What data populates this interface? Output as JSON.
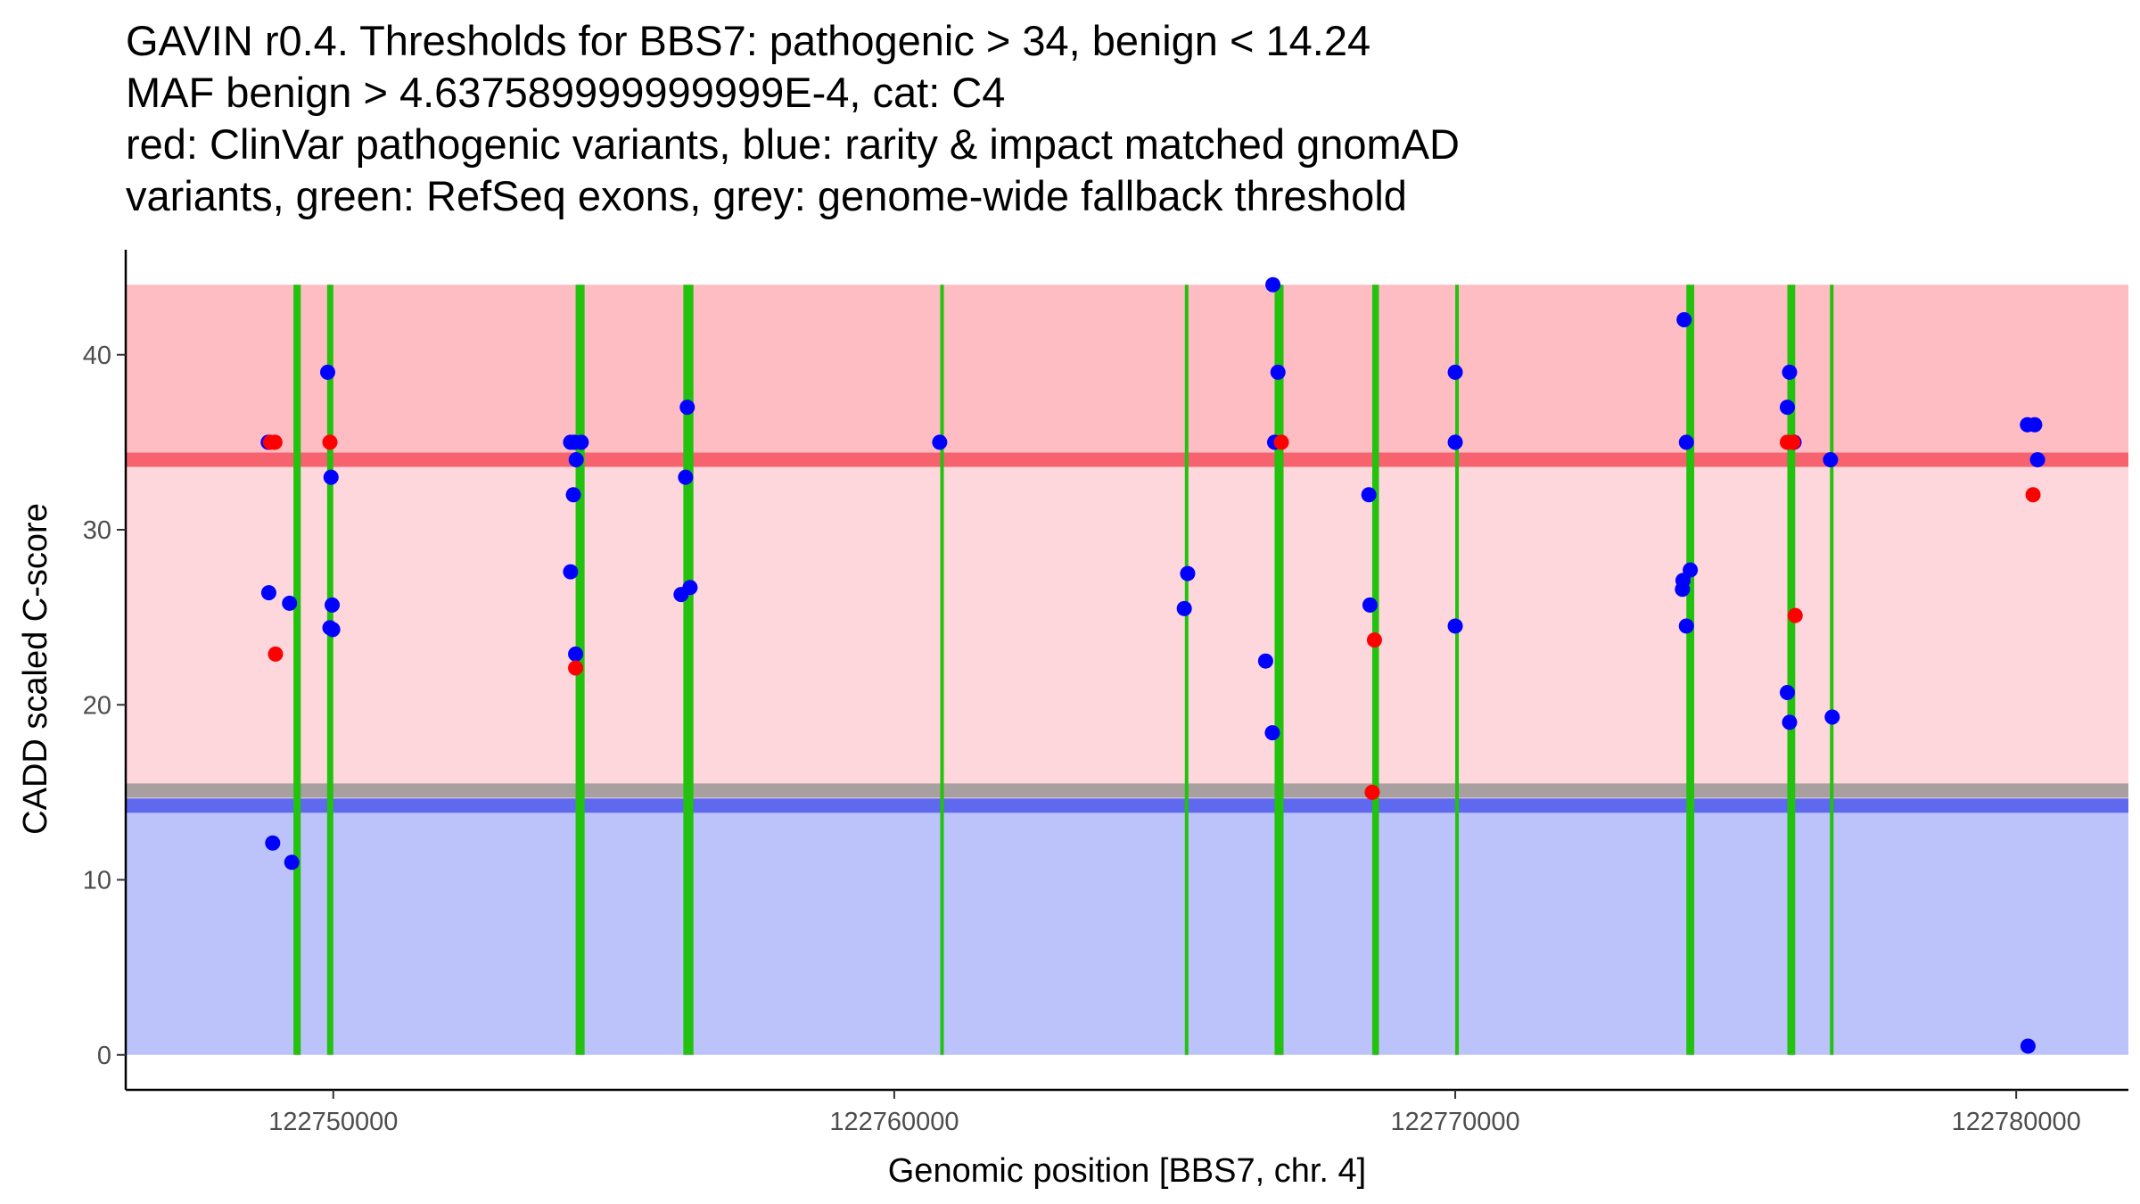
{
  "chart_data": {
    "type": "scatter",
    "title_lines": [
      "GAVIN r0.4. Thresholds for BBS7: pathogenic > 34, benign < 14.24",
      "MAF benign > 4.637589999999999E-4, cat: C4",
      "red: ClinVar pathogenic variants, blue: rarity & impact matched gnomAD",
      "variants, green: RefSeq exons, grey: genome-wide fallback threshold"
    ],
    "xlabel": "Genomic position [BBS7, chr. 4]",
    "ylabel": "CADD scaled C-score",
    "xlim": [
      122746300,
      122782000
    ],
    "ylim": [
      -2.0,
      46.0
    ],
    "x_ticks": [
      {
        "value": 122750000,
        "label": "122750000"
      },
      {
        "value": 122760000,
        "label": "122760000"
      },
      {
        "value": 122770000,
        "label": "122770000"
      },
      {
        "value": 122780000,
        "label": "122780000"
      }
    ],
    "y_ticks": [
      {
        "value": 0,
        "label": "0"
      },
      {
        "value": 10,
        "label": "10"
      },
      {
        "value": 20,
        "label": "20"
      },
      {
        "value": 30,
        "label": "30"
      },
      {
        "value": 40,
        "label": "40"
      }
    ],
    "thresholds": {
      "pathogenic": 34,
      "benign": 14.24,
      "genome_wide_fallback": 15.1,
      "max_score": 44
    },
    "colors": {
      "pathogenic_zone": "#fdd7dc",
      "pathogenic_upper": "#febcc3",
      "pathogenic_line": "#f6626e",
      "benign_zone": "#bcc2fa",
      "benign_line": "#5e69f0",
      "fallback_line": "#a8a0a0",
      "exon": "#22c20e",
      "clinvar": "#ff0000",
      "gnomad": "#0000ff"
    },
    "exons": [
      {
        "start": 122749290,
        "end": 122749420
      },
      {
        "start": 122749890,
        "end": 122750000
      },
      {
        "start": 122754320,
        "end": 122754480
      },
      {
        "start": 122756240,
        "end": 122756420
      },
      {
        "start": 122760820,
        "end": 122760860
      },
      {
        "start": 122765180,
        "end": 122765220
      },
      {
        "start": 122766780,
        "end": 122766940
      },
      {
        "start": 122768520,
        "end": 122768640
      },
      {
        "start": 122770000,
        "end": 122770040
      },
      {
        "start": 122774120,
        "end": 122774260
      },
      {
        "start": 122775920,
        "end": 122776060
      },
      {
        "start": 122776680,
        "end": 122776740
      }
    ],
    "series": [
      {
        "name": "ClinVar pathogenic variants",
        "color": "#ff0000",
        "points": [
          [
            122748880,
            35
          ],
          [
            122748960,
            35
          ],
          [
            122748970,
            22.9
          ],
          [
            122749940,
            35
          ],
          [
            122754320,
            22.1
          ],
          [
            122766900,
            35
          ],
          [
            122768560,
            23.7
          ],
          [
            122768520,
            15.0
          ],
          [
            122775920,
            35
          ],
          [
            122776020,
            35
          ],
          [
            122776060,
            25.1
          ],
          [
            122780300,
            32
          ]
        ]
      },
      {
        "name": "rarity & impact matched gnomAD variants",
        "color": "#0000ff",
        "points": [
          [
            122748840,
            35
          ],
          [
            122748850,
            26.4
          ],
          [
            122748920,
            12.1
          ],
          [
            122749220,
            25.8
          ],
          [
            122749260,
            11.0
          ],
          [
            122749900,
            39
          ],
          [
            122749940,
            24.4
          ],
          [
            122749980,
            25.7
          ],
          [
            122749960,
            33
          ],
          [
            122749990,
            24.3
          ],
          [
            122754230,
            35
          ],
          [
            122754300,
            35
          ],
          [
            122754330,
            34
          ],
          [
            122754280,
            32
          ],
          [
            122754230,
            27.6
          ],
          [
            122754320,
            22.9
          ],
          [
            122754420,
            35
          ],
          [
            122756200,
            26.3
          ],
          [
            122756310,
            37
          ],
          [
            122756280,
            33
          ],
          [
            122756360,
            26.7
          ],
          [
            122760810,
            35
          ],
          [
            122765170,
            25.5
          ],
          [
            122765230,
            27.5
          ],
          [
            122766620,
            22.5
          ],
          [
            122766750,
            44
          ],
          [
            122766840,
            39
          ],
          [
            122766780,
            35
          ],
          [
            122766740,
            18.4
          ],
          [
            122768460,
            32
          ],
          [
            122768480,
            25.7
          ],
          [
            122770000,
            39
          ],
          [
            122770000,
            35
          ],
          [
            122770000,
            24.5
          ],
          [
            122774080,
            42
          ],
          [
            122774120,
            35
          ],
          [
            122774060,
            27.1
          ],
          [
            122774050,
            26.6
          ],
          [
            122774190,
            27.7
          ],
          [
            122774120,
            24.5
          ],
          [
            122775960,
            39
          ],
          [
            122775920,
            37
          ],
          [
            122776040,
            35
          ],
          [
            122775920,
            20.7
          ],
          [
            122775960,
            19.0
          ],
          [
            122776690,
            34
          ],
          [
            122776720,
            19.3
          ],
          [
            122780200,
            36
          ],
          [
            122780330,
            36
          ],
          [
            122780380,
            34
          ],
          [
            122780210,
            0.5
          ]
        ]
      }
    ]
  }
}
